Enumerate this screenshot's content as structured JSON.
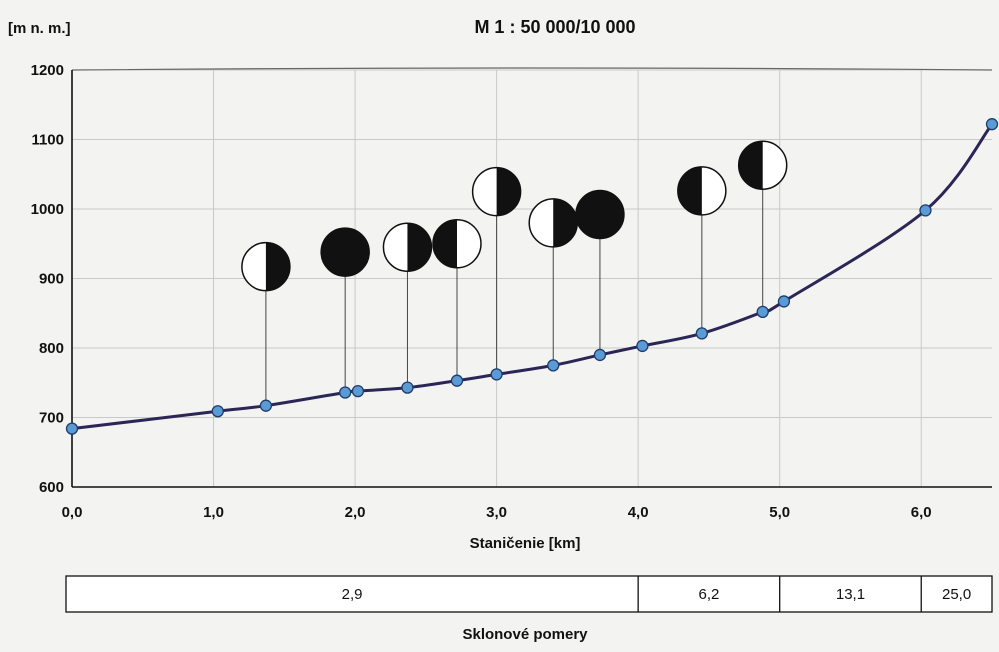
{
  "chart_data": {
    "type": "line",
    "title": "M 1 : 50 000/10 000",
    "ylabel": "[m n. m.]",
    "xlabel": "Staničenie [km]",
    "xlim": [
      0.0,
      6.5
    ],
    "ylim": [
      600,
      1200
    ],
    "x_ticks": [
      0.0,
      1.0,
      2.0,
      3.0,
      4.0,
      5.0,
      6.0
    ],
    "x_tick_labels": [
      "0,0",
      "1,0",
      "2,0",
      "3,0",
      "4,0",
      "5,0",
      "6,0"
    ],
    "y_ticks": [
      600,
      700,
      800,
      900,
      1000,
      1100,
      1200
    ],
    "y_tick_labels": [
      "600",
      "700",
      "800",
      "900",
      "1000",
      "1100",
      "1200"
    ],
    "grid": true,
    "series": [
      {
        "x": [
          0.0,
          1.03,
          1.37,
          1.93,
          2.02,
          2.37,
          2.72,
          3.0,
          3.4,
          3.73,
          4.03,
          4.45,
          4.88,
          5.03,
          6.03,
          6.5
        ],
        "y": [
          684,
          709,
          717,
          736,
          738,
          743,
          753,
          762,
          775,
          790,
          803,
          821,
          852,
          867,
          998,
          1122
        ]
      }
    ],
    "annotations": [
      {
        "x": 1.37,
        "y": 917,
        "fill": "right-half"
      },
      {
        "x": 1.93,
        "y": 938,
        "fill": "full"
      },
      {
        "x": 2.37,
        "y": 945,
        "fill": "right-half"
      },
      {
        "x": 2.72,
        "y": 950,
        "fill": "left-half"
      },
      {
        "x": 3.0,
        "y": 1025,
        "fill": "right-half"
      },
      {
        "x": 3.4,
        "y": 980,
        "fill": "right-half"
      },
      {
        "x": 3.73,
        "y": 992,
        "fill": "full"
      },
      {
        "x": 4.45,
        "y": 1026,
        "fill": "left-half"
      },
      {
        "x": 4.88,
        "y": 1063,
        "fill": "left-half"
      }
    ],
    "slope_table": {
      "label": "Sklonové pomery",
      "boundaries": [
        0.0,
        4.0,
        5.0,
        6.0,
        6.5
      ],
      "values": [
        "2,9",
        "6,2",
        "13,1",
        "25,0"
      ]
    },
    "colors": {
      "line": "#2b2656",
      "marker": "#5b9bd5",
      "marker_stroke": "#1f3d6b",
      "ink": "#111111"
    }
  }
}
